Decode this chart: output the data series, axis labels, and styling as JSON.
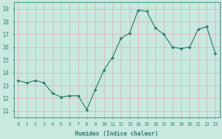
{
  "x": [
    0,
    1,
    2,
    3,
    4,
    5,
    6,
    7,
    8,
    9,
    10,
    11,
    12,
    13,
    14,
    15,
    16,
    17,
    18,
    19,
    20,
    21,
    22,
    23
  ],
  "y": [
    13.4,
    13.2,
    13.4,
    13.2,
    12.4,
    12.1,
    12.2,
    12.2,
    11.1,
    12.7,
    14.2,
    15.2,
    16.7,
    17.1,
    18.9,
    18.8,
    17.5,
    17.0,
    16.0,
    15.9,
    16.0,
    17.4,
    17.6,
    15.5
  ],
  "xlabel": "Humidex (Indice chaleur)",
  "ylim": [
    10.5,
    19.5
  ],
  "xlim": [
    -0.5,
    23.5
  ],
  "yticks": [
    11,
    12,
    13,
    14,
    15,
    16,
    17,
    18,
    19
  ],
  "xtick_labels": [
    "0",
    "1",
    "2",
    "3",
    "4",
    "5",
    "6",
    "7",
    "8",
    "9",
    "10",
    "11",
    "12",
    "13",
    "14",
    "15",
    "16",
    "17",
    "18",
    "19",
    "20",
    "21",
    "22",
    "23"
  ],
  "line_color": "#2e7d6e",
  "marker_color": "#2e7d6e",
  "bg_color": "#c8e8e0",
  "grid_color": "#d4b8b8",
  "label_color": "#2e7d6e",
  "tick_color": "#2e7d6e",
  "spine_color": "#2e7d6e"
}
